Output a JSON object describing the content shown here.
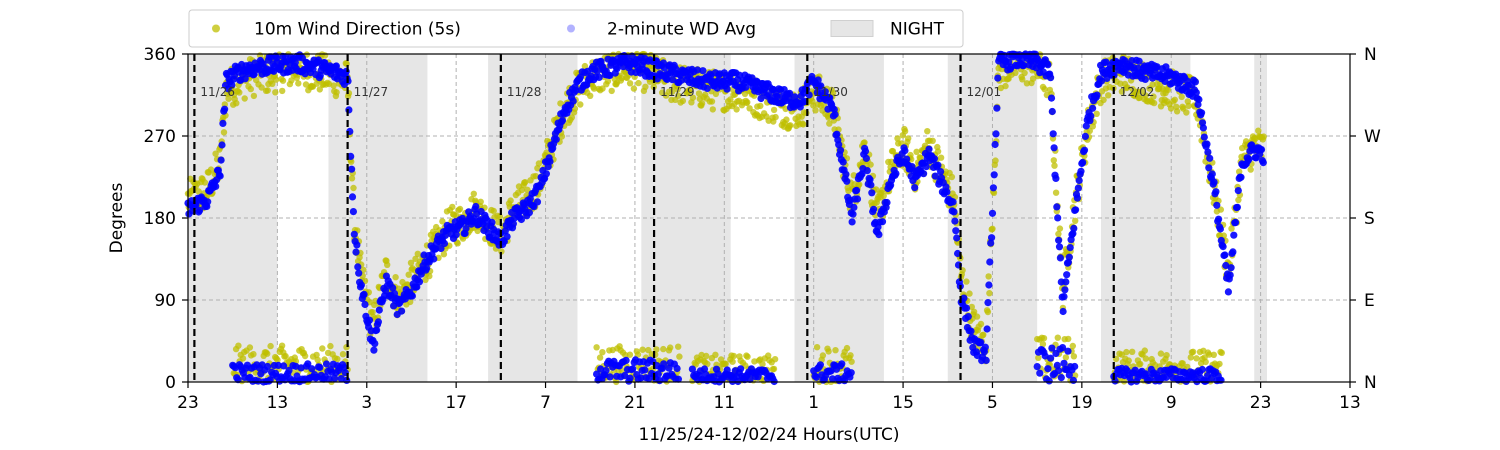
{
  "chart_data": {
    "type": "scatter",
    "xlabel": "11/25/24-12/02/24  Hours(UTC)",
    "ylabel": "Degrees",
    "ylim": [
      0,
      360
    ],
    "x_range_hours": [
      0,
      182
    ],
    "x_ticks": [
      {
        "h": 0,
        "label": "23"
      },
      {
        "h": 14,
        "label": "13"
      },
      {
        "h": 28,
        "label": "3"
      },
      {
        "h": 42,
        "label": "17"
      },
      {
        "h": 56,
        "label": "7"
      },
      {
        "h": 70,
        "label": "21"
      },
      {
        "h": 84,
        "label": "11"
      },
      {
        "h": 98,
        "label": "1"
      },
      {
        "h": 112,
        "label": "15"
      },
      {
        "h": 126,
        "label": "5"
      },
      {
        "h": 140,
        "label": "19"
      },
      {
        "h": 154,
        "label": "9"
      },
      {
        "h": 168,
        "label": "23"
      },
      {
        "h": 182,
        "label": "13"
      }
    ],
    "y_ticks": [
      0,
      90,
      180,
      270,
      360
    ],
    "right_ticks": [
      {
        "v": 0,
        "label": "N"
      },
      {
        "v": 90,
        "label": "E"
      },
      {
        "v": 180,
        "label": "S"
      },
      {
        "v": 270,
        "label": "W"
      },
      {
        "v": 360,
        "label": "N"
      }
    ],
    "day_markers": [
      {
        "h": 1,
        "label": "11/26"
      },
      {
        "h": 25,
        "label": "11/27"
      },
      {
        "h": 49,
        "label": "11/28"
      },
      {
        "h": 73,
        "label": "11/29"
      },
      {
        "h": 97,
        "label": "11/30"
      },
      {
        "h": 121,
        "label": "12/01"
      },
      {
        "h": 145,
        "label": "12/02"
      }
    ],
    "night_spans": [
      [
        0,
        14
      ],
      [
        22,
        37.5
      ],
      [
        47,
        61
      ],
      [
        71,
        85
      ],
      [
        95,
        109
      ],
      [
        119,
        133
      ],
      [
        143,
        157
      ],
      [
        167,
        169
      ]
    ],
    "legend": {
      "position": "top",
      "entries": [
        {
          "label": "10m Wind Direction (5s)",
          "color": "#bfbf00",
          "kind": "dot"
        },
        {
          "label": "2-minute WD Avg",
          "color": "#0000ff",
          "kind": "dot-faint"
        },
        {
          "label": "NIGHT",
          "color": "#e6e6e6",
          "kind": "box"
        }
      ]
    },
    "grid": true,
    "series": [
      {
        "name": "10m Wind Direction (5s)",
        "color": "#bfbf00",
        "spread": 22,
        "profile": [
          [
            0,
            200
          ],
          [
            3,
            210
          ],
          [
            5,
            240
          ],
          [
            6,
            320
          ],
          [
            8,
            330
          ],
          [
            10,
            335
          ],
          [
            14,
            340
          ],
          [
            17,
            345
          ],
          [
            20,
            340
          ],
          [
            23,
            335
          ],
          [
            25,
            330
          ],
          [
            26,
            180
          ],
          [
            27,
            120
          ],
          [
            29,
            60
          ],
          [
            31,
            120
          ],
          [
            33,
            90
          ],
          [
            35,
            110
          ],
          [
            37,
            130
          ],
          [
            39,
            150
          ],
          [
            41,
            170
          ],
          [
            43,
            175
          ],
          [
            45,
            190
          ],
          [
            47,
            175
          ],
          [
            49,
            160
          ],
          [
            51,
            190
          ],
          [
            53,
            200
          ],
          [
            55,
            220
          ],
          [
            57,
            260
          ],
          [
            59,
            300
          ],
          [
            61,
            320
          ],
          [
            63,
            335
          ],
          [
            66,
            340
          ],
          [
            69,
            345
          ],
          [
            72,
            340
          ],
          [
            75,
            330
          ],
          [
            78,
            325
          ],
          [
            82,
            320
          ],
          [
            86,
            320
          ],
          [
            90,
            310
          ],
          [
            94,
            300
          ],
          [
            96,
            300
          ],
          [
            98,
            320
          ],
          [
            101,
            300
          ],
          [
            104,
            200
          ],
          [
            106,
            260
          ],
          [
            108,
            180
          ],
          [
            110,
            230
          ],
          [
            112,
            260
          ],
          [
            114,
            230
          ],
          [
            116,
            260
          ],
          [
            118,
            230
          ],
          [
            120,
            200
          ],
          [
            121,
            120
          ],
          [
            123,
            60
          ],
          [
            125,
            40
          ],
          [
            127,
            340
          ],
          [
            130,
            350
          ],
          [
            133,
            345
          ],
          [
            135,
            330
          ],
          [
            137,
            100
          ],
          [
            139,
            200
          ],
          [
            141,
            280
          ],
          [
            143,
            330
          ],
          [
            146,
            340
          ],
          [
            150,
            330
          ],
          [
            154,
            320
          ],
          [
            158,
            310
          ],
          [
            161,
            200
          ],
          [
            163,
            120
          ],
          [
            165,
            240
          ],
          [
            167,
            260
          ],
          [
            168.5,
            255
          ]
        ],
        "low_bands": [
          [
            7,
            25,
            40
          ],
          [
            64,
            77,
            40
          ],
          [
            79,
            92,
            30
          ],
          [
            98,
            104,
            40
          ],
          [
            133,
            139,
            50
          ],
          [
            145,
            162,
            35
          ]
        ]
      },
      {
        "name": "2-minute WD Avg",
        "color": "#0000ff",
        "spread": 10,
        "profile": [
          [
            0,
            190
          ],
          [
            3,
            200
          ],
          [
            5,
            230
          ],
          [
            6,
            330
          ],
          [
            8,
            340
          ],
          [
            10,
            345
          ],
          [
            14,
            348
          ],
          [
            17,
            350
          ],
          [
            20,
            345
          ],
          [
            23,
            340
          ],
          [
            25,
            335
          ],
          [
            26,
            170
          ],
          [
            27,
            110
          ],
          [
            29,
            40
          ],
          [
            31,
            110
          ],
          [
            33,
            80
          ],
          [
            35,
            100
          ],
          [
            37,
            130
          ],
          [
            39,
            150
          ],
          [
            41,
            165
          ],
          [
            43,
            170
          ],
          [
            45,
            185
          ],
          [
            47,
            170
          ],
          [
            49,
            155
          ],
          [
            51,
            180
          ],
          [
            53,
            190
          ],
          [
            55,
            210
          ],
          [
            57,
            255
          ],
          [
            59,
            300
          ],
          [
            61,
            325
          ],
          [
            63,
            340
          ],
          [
            66,
            345
          ],
          [
            69,
            350
          ],
          [
            72,
            345
          ],
          [
            75,
            340
          ],
          [
            78,
            335
          ],
          [
            82,
            330
          ],
          [
            86,
            330
          ],
          [
            90,
            320
          ],
          [
            94,
            310
          ],
          [
            96,
            310
          ],
          [
            98,
            330
          ],
          [
            101,
            300
          ],
          [
            104,
            180
          ],
          [
            106,
            250
          ],
          [
            108,
            160
          ],
          [
            110,
            220
          ],
          [
            112,
            250
          ],
          [
            114,
            220
          ],
          [
            116,
            250
          ],
          [
            118,
            220
          ],
          [
            120,
            190
          ],
          [
            121,
            100
          ],
          [
            123,
            40
          ],
          [
            125,
            30
          ],
          [
            127,
            350
          ],
          [
            130,
            355
          ],
          [
            133,
            350
          ],
          [
            135,
            340
          ],
          [
            137,
            80
          ],
          [
            139,
            190
          ],
          [
            141,
            290
          ],
          [
            143,
            340
          ],
          [
            146,
            350
          ],
          [
            150,
            340
          ],
          [
            154,
            335
          ],
          [
            158,
            320
          ],
          [
            161,
            200
          ],
          [
            163,
            100
          ],
          [
            165,
            240
          ],
          [
            167,
            255
          ],
          [
            168.5,
            250
          ]
        ],
        "low_bands": [
          [
            7,
            25,
            20
          ],
          [
            64,
            77,
            25
          ],
          [
            79,
            92,
            15
          ],
          [
            98,
            104,
            20
          ],
          [
            133,
            139,
            40
          ],
          [
            145,
            162,
            15
          ]
        ]
      }
    ]
  }
}
